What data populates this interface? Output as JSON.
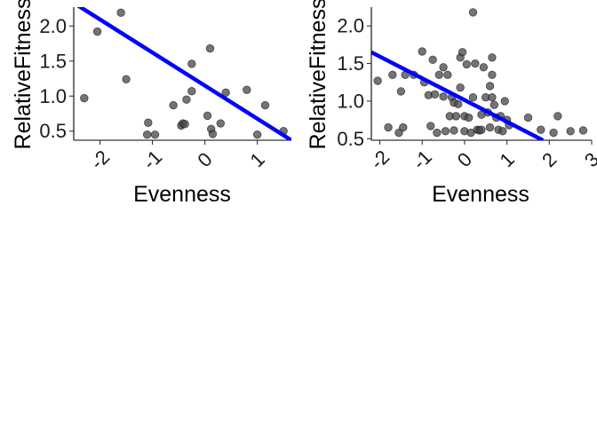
{
  "colors": {
    "point_fill": "#4d4d4d",
    "point_stroke": "#000000",
    "fit_line": "#0000ff",
    "axis": "#000000",
    "background": "#ffffff"
  },
  "chart_data": [
    {
      "type": "scatter",
      "title": "",
      "xlabel": "Evenness",
      "ylabel": "RelativeFitness",
      "xlim": [
        -2.5,
        1.65
      ],
      "ylim": [
        0.37,
        2.27
      ],
      "xticks": [
        -2,
        -1,
        0,
        1
      ],
      "xtick_labels": [
        "-2",
        "-1",
        "0",
        "1"
      ],
      "yticks": [
        0.5,
        1.0,
        1.5,
        2.0
      ],
      "ytick_labels": [
        "0.5",
        "1.0",
        "1.5",
        "2.0"
      ],
      "grid": false,
      "points": [
        {
          "x": -2.3,
          "y": 0.97
        },
        {
          "x": -2.05,
          "y": 1.92
        },
        {
          "x": -1.6,
          "y": 2.19
        },
        {
          "x": -1.5,
          "y": 1.24
        },
        {
          "x": -1.1,
          "y": 0.45
        },
        {
          "x": -1.08,
          "y": 0.62
        },
        {
          "x": -0.95,
          "y": 0.45
        },
        {
          "x": -0.6,
          "y": 0.87
        },
        {
          "x": -0.45,
          "y": 0.58
        },
        {
          "x": -0.42,
          "y": 0.61
        },
        {
          "x": -0.38,
          "y": 0.6
        },
        {
          "x": -0.35,
          "y": 0.95
        },
        {
          "x": -0.25,
          "y": 1.46
        },
        {
          "x": -0.25,
          "y": 1.07
        },
        {
          "x": 0.05,
          "y": 0.72
        },
        {
          "x": 0.1,
          "y": 1.68
        },
        {
          "x": 0.12,
          "y": 0.53
        },
        {
          "x": 0.15,
          "y": 0.46
        },
        {
          "x": 0.3,
          "y": 0.61
        },
        {
          "x": 0.4,
          "y": 1.05
        },
        {
          "x": 0.8,
          "y": 1.09
        },
        {
          "x": 1.0,
          "y": 0.45
        },
        {
          "x": 1.15,
          "y": 0.87
        },
        {
          "x": 1.5,
          "y": 0.5
        }
      ],
      "fit_line": {
        "x": [
          -2.5,
          1.65
        ],
        "y": [
          2.33,
          0.37
        ]
      }
    },
    {
      "type": "scatter",
      "title": "",
      "xlabel": "Evenness",
      "ylabel": "RelativeFitness",
      "xlim": [
        -2.2,
        3.0
      ],
      "ylim": [
        0.48,
        2.25
      ],
      "xticks": [
        -2,
        -1,
        0,
        1,
        2,
        3
      ],
      "xtick_labels": [
        "-2",
        "-1",
        "0",
        "1",
        "2",
        "3"
      ],
      "yticks": [
        0.5,
        1.0,
        1.5,
        2.0
      ],
      "ytick_labels": [
        "0.5",
        "1.0",
        "1.5",
        "2.0"
      ],
      "grid": false,
      "points": [
        {
          "x": -2.05,
          "y": 1.27
        },
        {
          "x": -1.8,
          "y": 0.65
        },
        {
          "x": -1.7,
          "y": 1.35
        },
        {
          "x": -1.55,
          "y": 0.58
        },
        {
          "x": -1.5,
          "y": 1.13
        },
        {
          "x": -1.45,
          "y": 0.65
        },
        {
          "x": -1.4,
          "y": 1.35
        },
        {
          "x": -1.2,
          "y": 1.35
        },
        {
          "x": -1.0,
          "y": 1.66
        },
        {
          "x": -0.95,
          "y": 1.25
        },
        {
          "x": -0.85,
          "y": 1.08
        },
        {
          "x": -0.8,
          "y": 0.67
        },
        {
          "x": -0.75,
          "y": 1.55
        },
        {
          "x": -0.7,
          "y": 1.09
        },
        {
          "x": -0.65,
          "y": 0.58
        },
        {
          "x": -0.6,
          "y": 1.35
        },
        {
          "x": -0.5,
          "y": 1.45
        },
        {
          "x": -0.5,
          "y": 1.06
        },
        {
          "x": -0.45,
          "y": 0.6
        },
        {
          "x": -0.4,
          "y": 1.35
        },
        {
          "x": -0.35,
          "y": 0.8
        },
        {
          "x": -0.3,
          "y": 1.05
        },
        {
          "x": -0.25,
          "y": 0.98
        },
        {
          "x": -0.25,
          "y": 0.61
        },
        {
          "x": -0.2,
          "y": 0.8
        },
        {
          "x": -0.15,
          "y": 0.96
        },
        {
          "x": -0.1,
          "y": 1.58
        },
        {
          "x": -0.1,
          "y": 1.18
        },
        {
          "x": -0.05,
          "y": 1.65
        },
        {
          "x": 0.0,
          "y": 0.8
        },
        {
          "x": 0.0,
          "y": 0.6
        },
        {
          "x": 0.05,
          "y": 1.49
        },
        {
          "x": 0.1,
          "y": 0.78
        },
        {
          "x": 0.15,
          "y": 0.58
        },
        {
          "x": 0.2,
          "y": 1.05
        },
        {
          "x": 0.2,
          "y": 2.18
        },
        {
          "x": 0.25,
          "y": 1.5
        },
        {
          "x": 0.3,
          "y": 0.62
        },
        {
          "x": 0.35,
          "y": 0.61
        },
        {
          "x": 0.4,
          "y": 0.62
        },
        {
          "x": 0.4,
          "y": 0.82
        },
        {
          "x": 0.45,
          "y": 1.45
        },
        {
          "x": 0.5,
          "y": 1.05
        },
        {
          "x": 0.55,
          "y": 0.85
        },
        {
          "x": 0.6,
          "y": 1.2
        },
        {
          "x": 0.6,
          "y": 0.65
        },
        {
          "x": 0.65,
          "y": 1.58
        },
        {
          "x": 0.65,
          "y": 1.35
        },
        {
          "x": 0.65,
          "y": 1.05
        },
        {
          "x": 0.7,
          "y": 0.95
        },
        {
          "x": 0.75,
          "y": 0.78
        },
        {
          "x": 0.8,
          "y": 0.62
        },
        {
          "x": 0.85,
          "y": 0.8
        },
        {
          "x": 0.9,
          "y": 0.6
        },
        {
          "x": 0.95,
          "y": 1.0
        },
        {
          "x": 1.0,
          "y": 0.75
        },
        {
          "x": 1.05,
          "y": 0.68
        },
        {
          "x": 1.5,
          "y": 0.78
        },
        {
          "x": 1.8,
          "y": 0.62
        },
        {
          "x": 2.1,
          "y": 0.58
        },
        {
          "x": 2.2,
          "y": 0.8
        },
        {
          "x": 2.5,
          "y": 0.6
        },
        {
          "x": 2.8,
          "y": 0.61
        }
      ],
      "fit_line": {
        "x": [
          -2.2,
          1.85
        ],
        "y": [
          1.65,
          0.48
        ]
      }
    }
  ]
}
